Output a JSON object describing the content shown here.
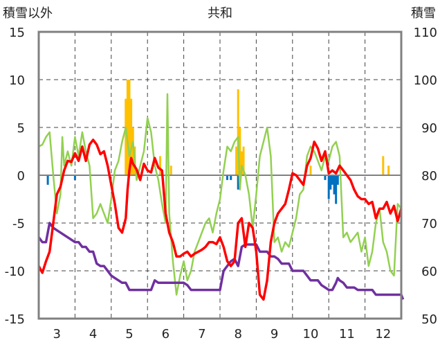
{
  "chart_data": {
    "type": "line",
    "title": "共和",
    "ylabel_left": "積雪以外",
    "ylabel_right": "積雪",
    "ylim_left": [
      -15,
      15
    ],
    "ylim_right": [
      50,
      110
    ],
    "left_ticks": [
      "15",
      "10",
      "5",
      "0",
      "-5",
      "-10",
      "-15"
    ],
    "right_ticks": [
      "110",
      "100",
      "90",
      "80",
      "70",
      "60",
      "50"
    ],
    "xlim": [
      2.5,
      12.5
    ],
    "x_ticks": [
      "3",
      "4",
      "5",
      "6",
      "7",
      "8",
      "9",
      "10",
      "11",
      "12"
    ],
    "grid": true,
    "colors": {
      "red": "#ff0000",
      "green": "#92d050",
      "purple": "#7030a0",
      "orange_bars": "#ffc000",
      "blue_bars": "#0070c0",
      "frame": "#808080",
      "zero_line": "#808080",
      "grid": "#404040"
    },
    "red_series": [
      [
        2.5,
        -9.5
      ],
      [
        2.6,
        -10.2
      ],
      [
        2.7,
        -9.0
      ],
      [
        2.8,
        -8.0
      ],
      [
        2.9,
        -5.0
      ],
      [
        3.0,
        -2.0
      ],
      [
        3.1,
        -1.2
      ],
      [
        3.2,
        0.5
      ],
      [
        3.3,
        1.5
      ],
      [
        3.4,
        1.4
      ],
      [
        3.5,
        2.3
      ],
      [
        3.6,
        1.5
      ],
      [
        3.7,
        3.0
      ],
      [
        3.8,
        1.5
      ],
      [
        3.9,
        3.2
      ],
      [
        4.0,
        3.7
      ],
      [
        4.1,
        3.2
      ],
      [
        4.2,
        2.2
      ],
      [
        4.3,
        2.5
      ],
      [
        4.4,
        1.0
      ],
      [
        4.5,
        -1.0
      ],
      [
        4.6,
        -3.0
      ],
      [
        4.7,
        -5.5
      ],
      [
        4.8,
        -6.0
      ],
      [
        4.9,
        -4.5
      ],
      [
        4.95,
        -1.5
      ],
      [
        5.0,
        0.5
      ],
      [
        5.05,
        1.8
      ],
      [
        5.1,
        1.2
      ],
      [
        5.2,
        0.6
      ],
      [
        5.3,
        -0.5
      ],
      [
        5.4,
        1.2
      ],
      [
        5.5,
        0.5
      ],
      [
        5.6,
        0.3
      ],
      [
        5.7,
        1.8
      ],
      [
        5.8,
        0.8
      ],
      [
        5.9,
        0.5
      ],
      [
        6.0,
        -4.0
      ],
      [
        6.1,
        -6.0
      ],
      [
        6.2,
        -7.0
      ],
      [
        6.3,
        -8.5
      ],
      [
        6.4,
        -8.5
      ],
      [
        6.5,
        -8.2
      ],
      [
        6.6,
        -8.0
      ],
      [
        6.7,
        -8.5
      ],
      [
        6.8,
        -8.2
      ],
      [
        6.9,
        -8.0
      ],
      [
        7.0,
        -7.8
      ],
      [
        7.1,
        -7.5
      ],
      [
        7.2,
        -7.0
      ],
      [
        7.3,
        -7.0
      ],
      [
        7.4,
        -7.2
      ],
      [
        7.5,
        -6.5
      ],
      [
        7.6,
        -7.5
      ],
      [
        7.7,
        -9.0
      ],
      [
        7.8,
        -9.5
      ],
      [
        7.9,
        -9.0
      ],
      [
        8.0,
        -5.0
      ],
      [
        8.1,
        -4.5
      ],
      [
        8.2,
        -7.5
      ],
      [
        8.3,
        -5.0
      ],
      [
        8.4,
        -5.5
      ],
      [
        8.5,
        -8.0
      ],
      [
        8.6,
        -12.5
      ],
      [
        8.7,
        -13.0
      ],
      [
        8.8,
        -11.0
      ],
      [
        8.9,
        -7.0
      ],
      [
        9.0,
        -5.0
      ],
      [
        9.1,
        -4.0
      ],
      [
        9.2,
        -3.5
      ],
      [
        9.3,
        -3.0
      ],
      [
        9.4,
        -1.5
      ],
      [
        9.5,
        0.2
      ],
      [
        9.6,
        0.0
      ],
      [
        9.7,
        -0.5
      ],
      [
        9.8,
        -1.0
      ],
      [
        9.9,
        1.0
      ],
      [
        10.0,
        1.8
      ],
      [
        10.1,
        3.5
      ],
      [
        10.2,
        2.8
      ],
      [
        10.3,
        1.5
      ],
      [
        10.4,
        2.5
      ],
      [
        10.5,
        0.2
      ],
      [
        10.6,
        0.5
      ],
      [
        10.7,
        0.2
      ],
      [
        10.8,
        1.0
      ],
      [
        10.9,
        0.5
      ],
      [
        11.0,
        0.0
      ],
      [
        11.1,
        -0.5
      ],
      [
        11.2,
        -1.5
      ],
      [
        11.3,
        -2.2
      ],
      [
        11.4,
        -2.5
      ],
      [
        11.5,
        -2.5
      ],
      [
        11.6,
        -3.0
      ],
      [
        11.7,
        -2.8
      ],
      [
        11.8,
        -4.5
      ],
      [
        11.9,
        -3.5
      ],
      [
        12.0,
        -3.5
      ],
      [
        12.1,
        -2.8
      ],
      [
        12.2,
        -4.0
      ],
      [
        12.3,
        -3.2
      ],
      [
        12.4,
        -4.8
      ],
      [
        12.5,
        -3.5
      ]
    ],
    "green_series": [
      [
        2.5,
        3.0
      ],
      [
        2.6,
        3.2
      ],
      [
        2.7,
        4.0
      ],
      [
        2.8,
        4.5
      ],
      [
        2.9,
        0.0
      ],
      [
        3.0,
        -4.0
      ],
      [
        3.1,
        -2.0
      ],
      [
        3.15,
        4.0
      ],
      [
        3.2,
        1.0
      ],
      [
        3.3,
        2.5
      ],
      [
        3.4,
        1.0
      ],
      [
        3.5,
        4.0
      ],
      [
        3.6,
        2.0
      ],
      [
        3.7,
        4.5
      ],
      [
        3.8,
        2.5
      ],
      [
        3.9,
        1.0
      ],
      [
        4.0,
        -4.5
      ],
      [
        4.1,
        -4.0
      ],
      [
        4.2,
        -3.0
      ],
      [
        4.3,
        -4.0
      ],
      [
        4.4,
        -5.0
      ],
      [
        4.5,
        -2.5
      ],
      [
        4.6,
        0.5
      ],
      [
        4.7,
        1.5
      ],
      [
        4.8,
        3.5
      ],
      [
        4.9,
        5.0
      ],
      [
        5.0,
        2.0
      ],
      [
        5.1,
        3.5
      ],
      [
        5.2,
        -0.5
      ],
      [
        5.3,
        1.0
      ],
      [
        5.4,
        2.5
      ],
      [
        5.5,
        6.0
      ],
      [
        5.6,
        4.5
      ],
      [
        5.7,
        1.0
      ],
      [
        5.8,
        -0.5
      ],
      [
        5.9,
        -3.0
      ],
      [
        6.0,
        -5.0
      ],
      [
        6.05,
        8.5
      ],
      [
        6.1,
        -4.0
      ],
      [
        6.2,
        -9.0
      ],
      [
        6.3,
        -12.5
      ],
      [
        6.4,
        -10.5
      ],
      [
        6.5,
        -9.0
      ],
      [
        6.6,
        -11.0
      ],
      [
        6.7,
        -10.0
      ],
      [
        6.8,
        -8.0
      ],
      [
        6.9,
        -7.0
      ],
      [
        7.0,
        -6.0
      ],
      [
        7.1,
        -5.0
      ],
      [
        7.2,
        -4.5
      ],
      [
        7.3,
        -6.0
      ],
      [
        7.4,
        -4.0
      ],
      [
        7.5,
        -2.5
      ],
      [
        7.6,
        0.5
      ],
      [
        7.7,
        3.0
      ],
      [
        7.8,
        2.5
      ],
      [
        7.9,
        3.5
      ],
      [
        8.0,
        4.0
      ],
      [
        8.05,
        -1.5
      ],
      [
        8.1,
        1.0
      ],
      [
        8.2,
        0.0
      ],
      [
        8.3,
        -2.0
      ],
      [
        8.4,
        -5.5
      ],
      [
        8.5,
        -2.0
      ],
      [
        8.6,
        2.0
      ],
      [
        8.7,
        3.5
      ],
      [
        8.8,
        5.0
      ],
      [
        8.9,
        2.0
      ],
      [
        9.0,
        -7.0
      ],
      [
        9.1,
        -6.5
      ],
      [
        9.2,
        -8.0
      ],
      [
        9.3,
        -7.0
      ],
      [
        9.4,
        -7.5
      ],
      [
        9.5,
        -6.0
      ],
      [
        9.6,
        -4.5
      ],
      [
        9.7,
        -2.0
      ],
      [
        9.8,
        -1.5
      ],
      [
        9.9,
        2.0
      ],
      [
        10.0,
        3.0
      ],
      [
        10.1,
        2.5
      ],
      [
        10.2,
        1.5
      ],
      [
        10.3,
        0.5
      ],
      [
        10.4,
        2.0
      ],
      [
        10.5,
        1.5
      ],
      [
        10.6,
        3.0
      ],
      [
        10.7,
        3.5
      ],
      [
        10.8,
        2.0
      ],
      [
        10.9,
        -6.5
      ],
      [
        11.0,
        -6.0
      ],
      [
        11.1,
        -7.0
      ],
      [
        11.2,
        -6.5
      ],
      [
        11.3,
        -6.0
      ],
      [
        11.4,
        -8.0
      ],
      [
        11.5,
        -6.5
      ],
      [
        11.6,
        -9.5
      ],
      [
        11.7,
        -8.0
      ],
      [
        11.8,
        -5.0
      ],
      [
        11.9,
        -3.5
      ],
      [
        12.0,
        -7.0
      ],
      [
        12.1,
        -8.0
      ],
      [
        12.2,
        -10.0
      ],
      [
        12.3,
        -10.5
      ],
      [
        12.4,
        -3.0
      ],
      [
        12.5,
        -3.5
      ]
    ],
    "purple_series": [
      [
        2.5,
        67.0
      ],
      [
        2.6,
        66.0
      ],
      [
        2.7,
        66.0
      ],
      [
        2.8,
        70.0
      ],
      [
        2.9,
        69.0
      ],
      [
        3.0,
        68.5
      ],
      [
        3.1,
        68.0
      ],
      [
        3.2,
        67.5
      ],
      [
        3.3,
        67.0
      ],
      [
        3.4,
        66.5
      ],
      [
        3.5,
        66.0
      ],
      [
        3.6,
        66.0
      ],
      [
        3.7,
        65.0
      ],
      [
        3.8,
        65.0
      ],
      [
        3.9,
        64.0
      ],
      [
        4.0,
        64.0
      ],
      [
        4.1,
        61.5
      ],
      [
        4.2,
        61.0
      ],
      [
        4.3,
        61.0
      ],
      [
        4.4,
        60.0
      ],
      [
        4.5,
        59.0
      ],
      [
        4.6,
        58.5
      ],
      [
        4.7,
        58.0
      ],
      [
        4.8,
        57.5
      ],
      [
        4.9,
        57.5
      ],
      [
        5.0,
        56.0
      ],
      [
        5.5,
        56.0
      ],
      [
        5.6,
        56.0
      ],
      [
        5.7,
        58.0
      ],
      [
        5.8,
        57.5
      ],
      [
        6.0,
        57.5
      ],
      [
        6.5,
        57.5
      ],
      [
        6.6,
        57.0
      ],
      [
        6.7,
        56.0
      ],
      [
        7.0,
        56.0
      ],
      [
        7.5,
        56.0
      ],
      [
        7.6,
        60.0
      ],
      [
        7.8,
        62.0
      ],
      [
        7.9,
        62.5
      ],
      [
        8.0,
        61.0
      ],
      [
        8.1,
        65.0
      ],
      [
        8.2,
        65.5
      ],
      [
        8.5,
        65.5
      ],
      [
        8.6,
        64.0
      ],
      [
        8.8,
        64.0
      ],
      [
        8.9,
        63.0
      ],
      [
        9.0,
        63.0
      ],
      [
        9.1,
        62.5
      ],
      [
        9.2,
        61.5
      ],
      [
        9.4,
        61.5
      ],
      [
        9.5,
        60.0
      ],
      [
        9.8,
        60.0
      ],
      [
        10.0,
        58.0
      ],
      [
        10.2,
        58.0
      ],
      [
        10.3,
        57.0
      ],
      [
        10.4,
        56.5
      ],
      [
        10.5,
        56.0
      ],
      [
        10.6,
        56.0
      ],
      [
        10.7,
        57.5
      ],
      [
        10.75,
        58.5
      ],
      [
        10.8,
        58.0
      ],
      [
        10.9,
        57.5
      ],
      [
        11.0,
        56.5
      ],
      [
        11.2,
        56.5
      ],
      [
        11.3,
        56.0
      ],
      [
        11.5,
        56.0
      ],
      [
        11.7,
        56.0
      ],
      [
        11.8,
        55.0
      ],
      [
        12.5,
        55.0
      ],
      [
        12.55,
        54.0
      ]
    ],
    "orange_bars": [
      [
        4.9,
        8.0
      ],
      [
        4.95,
        10.0
      ],
      [
        5.0,
        10.0
      ],
      [
        5.05,
        8.0
      ],
      [
        5.1,
        5.0
      ],
      [
        5.15,
        3.0
      ],
      [
        5.85,
        2.0
      ],
      [
        6.15,
        1.0
      ],
      [
        7.95,
        3.0
      ],
      [
        8.0,
        9.0
      ],
      [
        8.05,
        5.0
      ],
      [
        8.1,
        2.5
      ],
      [
        8.15,
        3.0
      ],
      [
        10.0,
        1.0
      ],
      [
        12.0,
        2.0
      ],
      [
        12.15,
        1.0
      ]
    ],
    "blue_bars": [
      [
        2.75,
        -1.0
      ],
      [
        3.5,
        -0.5
      ],
      [
        7.7,
        -0.5
      ],
      [
        7.8,
        -0.5
      ],
      [
        8.0,
        -1.5
      ],
      [
        10.4,
        -0.5
      ],
      [
        10.5,
        -2.5
      ],
      [
        10.55,
        -1.5
      ],
      [
        10.6,
        -1.0
      ],
      [
        10.65,
        -2.0
      ],
      [
        10.7,
        -3.0
      ],
      [
        10.75,
        -1.0
      ]
    ]
  }
}
